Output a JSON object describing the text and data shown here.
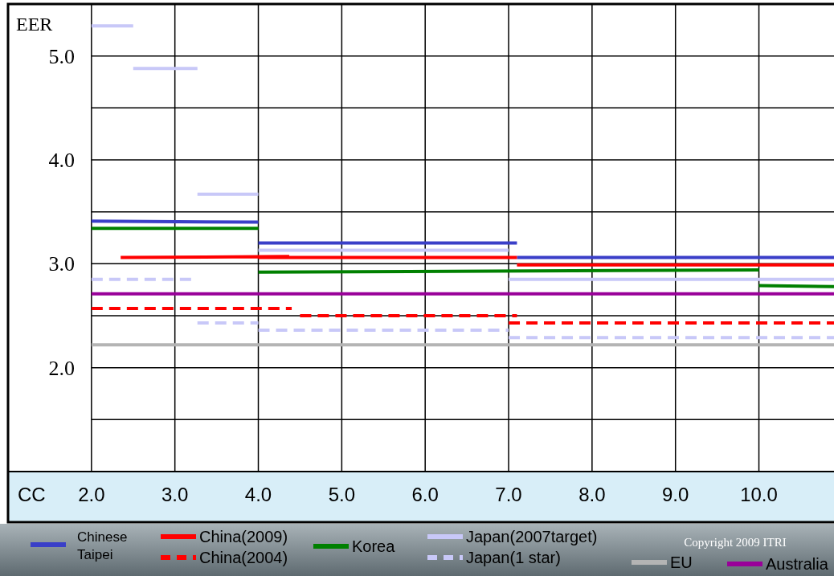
{
  "chart_data": {
    "type": "line",
    "xlabel": "CC",
    "ylabel": "EER",
    "xlim": [
      1.0,
      10.9
    ],
    "ylim": [
      1.0,
      5.5
    ],
    "xticks": [
      {
        "value": 2,
        "label": "2.0"
      },
      {
        "value": 3,
        "label": "3.0"
      },
      {
        "value": 4,
        "label": "4.0"
      },
      {
        "value": 5,
        "label": "5.0"
      },
      {
        "value": 6,
        "label": "6.0"
      },
      {
        "value": 7,
        "label": "7.0"
      },
      {
        "value": 8,
        "label": "8.0"
      },
      {
        "value": 9,
        "label": "9.0"
      },
      {
        "value": 10,
        "label": "10.0"
      }
    ],
    "yticks": [
      {
        "value": 1.5,
        "label": null
      },
      {
        "value": 2,
        "label": "2.0"
      },
      {
        "value": 2.5,
        "label": null
      },
      {
        "value": 3,
        "label": "3.0"
      },
      {
        "value": 3.5,
        "label": null
      },
      {
        "value": 4,
        "label": "4.0"
      },
      {
        "value": 4.5,
        "label": null
      },
      {
        "value": 5,
        "label": "5.0"
      }
    ],
    "grid": true,
    "legend": "bottom",
    "marker": "none",
    "series": [
      {
        "name": "Chinese Taipei",
        "color": "#3a3fc8",
        "line_style": "solid",
        "x": [
          2.0,
          4.0,
          null,
          4.0,
          7.1,
          null,
          7.1,
          10.9
        ],
        "values": [
          3.41,
          3.4,
          null,
          3.2,
          3.2,
          null,
          3.06,
          3.06
        ]
      },
      {
        "name": "China(2009)",
        "color": "#ff0000",
        "line_style": "solid",
        "x": [
          2.35,
          4.37,
          null,
          4.0,
          7.1,
          null,
          7.1,
          10.9
        ],
        "values": [
          3.06,
          3.07,
          null,
          3.06,
          3.06,
          null,
          2.99,
          2.99
        ]
      },
      {
        "name": "China(2004)",
        "color": "#ff0000",
        "line_style": "dashed",
        "x": [
          2.0,
          4.4,
          null,
          4.5,
          7.1,
          null,
          7.0,
          10.9
        ],
        "values": [
          2.57,
          2.57,
          null,
          2.5,
          2.5,
          null,
          2.43,
          2.43
        ]
      },
      {
        "name": "Korea",
        "color": "#008000",
        "line_style": "solid",
        "x": [
          2.0,
          4.0,
          null,
          4.0,
          10.0,
          null,
          10.0,
          10.9
        ],
        "values": [
          3.34,
          3.34,
          null,
          2.92,
          2.94,
          null,
          2.79,
          2.78
        ]
      },
      {
        "name": "Japan(2007target)",
        "color": "#c8c8f8",
        "line_style": "solid",
        "x": [
          2.0,
          2.5,
          null,
          2.5,
          3.27,
          null,
          3.27,
          4.0,
          null,
          4.0,
          7.0,
          null,
          7.0,
          10.9
        ],
        "values": [
          5.29,
          5.29,
          null,
          4.88,
          4.88,
          null,
          3.67,
          3.67,
          null,
          3.13,
          3.13,
          null,
          2.85,
          2.85
        ]
      },
      {
        "name": "Japan(1 star)",
        "color": "#c8c8f8",
        "line_style": "dashed",
        "x": [
          2.0,
          3.27,
          null,
          3.27,
          4.0,
          null,
          4.0,
          7.0,
          null,
          7.0,
          10.9
        ],
        "values": [
          2.85,
          2.85,
          null,
          2.43,
          2.43,
          null,
          2.36,
          2.36,
          null,
          2.29,
          2.29
        ]
      },
      {
        "name": "EU",
        "color": "#b4b4b4",
        "line_style": "solid",
        "x": [
          2.0,
          10.9
        ],
        "values": [
          2.22,
          2.22
        ]
      },
      {
        "name": "Australia",
        "color": "#990099",
        "line_style": "solid",
        "x": [
          2.0,
          10.9
        ],
        "values": [
          2.71,
          2.71
        ]
      }
    ],
    "annotations": [
      "Copyright 2009 ITRI"
    ]
  }
}
